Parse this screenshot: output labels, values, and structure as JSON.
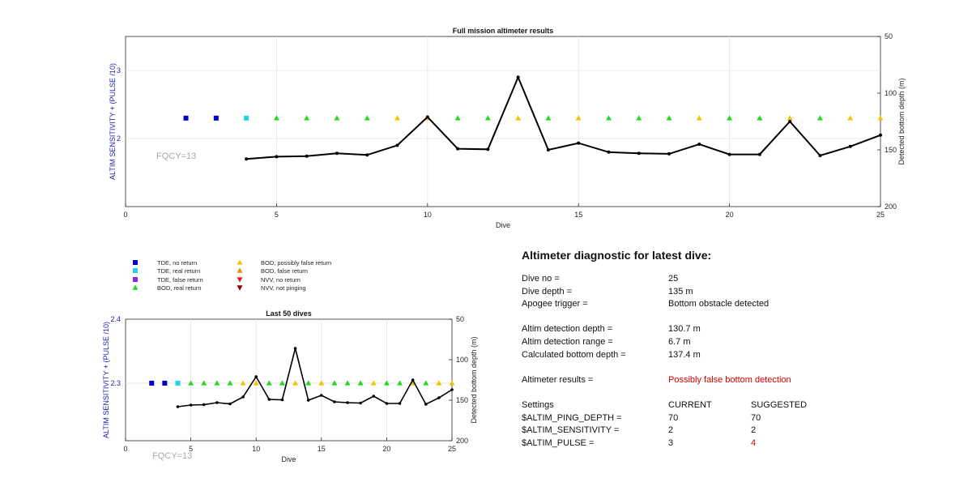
{
  "top_chart": {
    "title": "Full mission altimeter results",
    "xlabel": "Dive",
    "ylabel_left": "ALTIM SENSITIVITY + (PULSE /10)",
    "ylabel_right": "Detected bottom depth (m)",
    "annotation": "FQCY=13",
    "x_ticks": [
      "0",
      "5",
      "10",
      "15",
      "20",
      "25"
    ],
    "y_left_ticks": [
      "2",
      "3"
    ],
    "y_right_ticks": [
      "50",
      "100",
      "150",
      "200"
    ]
  },
  "bottom_chart": {
    "title": "Last 50 dives",
    "xlabel": "Dive",
    "ylabel_left": "ALTIM SENSITIVITY + (PULSE /10)",
    "ylabel_right": "Detected bottom depth (m)",
    "annotation": "FQCY=13",
    "x_ticks": [
      "0",
      "5",
      "10",
      "15",
      "20",
      "25"
    ],
    "y_left_ticks": [
      "2.3",
      "2.4"
    ],
    "y_right_ticks": [
      "50",
      "100",
      "150",
      "200"
    ]
  },
  "legend": [
    {
      "label": "TDE, no return",
      "marker": "square",
      "color": "#0000cc"
    },
    {
      "label": "TDE, real return",
      "marker": "square",
      "color": "#22d3e6"
    },
    {
      "label": "TDE, false return",
      "marker": "square",
      "color": "#8b2be2"
    },
    {
      "label": "BOD, real return",
      "marker": "triangle-up",
      "color": "#1fdc1f"
    },
    {
      "label": "BOD, possibly false return",
      "marker": "triangle-up",
      "color": "#f5c400"
    },
    {
      "label": "BOD, false return",
      "marker": "triangle-up",
      "color": "#f08c00"
    },
    {
      "label": "NVV, no return",
      "marker": "triangle-down",
      "color": "#e02020"
    },
    {
      "label": "NVV, not pinging",
      "marker": "triangle-down",
      "color": "#8b0000"
    }
  ],
  "chart_data": [
    {
      "type": "scatter",
      "title": "Full mission altimeter results",
      "xlabel": "Dive",
      "ylabel": "ALTIM SENSITIVITY + (PULSE /10)",
      "y2label": "Detected bottom depth (m)",
      "xlim": [
        0,
        25
      ],
      "ylim_left": [
        1,
        3.5
      ],
      "ylim_right": [
        200,
        50
      ],
      "series": [
        {
          "name": "TDE, no return",
          "marker": "square",
          "color": "#0000cc",
          "x": [
            2,
            3
          ],
          "y": [
            2.3,
            2.3
          ]
        },
        {
          "name": "TDE, real return",
          "marker": "square",
          "color": "#22d3e6",
          "x": [
            4
          ],
          "y": [
            2.3
          ]
        },
        {
          "name": "BOD, real return",
          "marker": "triangle-up",
          "color": "#1fdc1f",
          "x": [
            5,
            6,
            7,
            8,
            11,
            12,
            14,
            16,
            17,
            18,
            20,
            21,
            23
          ],
          "y": [
            2.3,
            2.3,
            2.3,
            2.3,
            2.3,
            2.3,
            2.3,
            2.3,
            2.3,
            2.3,
            2.3,
            2.3,
            2.3
          ]
        },
        {
          "name": "BOD, possibly false return",
          "marker": "triangle-up",
          "color": "#f5c400",
          "x": [
            9,
            10,
            13,
            15,
            19,
            22,
            24,
            25
          ],
          "y": [
            2.3,
            2.3,
            2.3,
            2.3,
            2.3,
            2.3,
            2.3,
            2.3
          ]
        },
        {
          "name": "Detected bottom depth",
          "axis": "right",
          "type": "line",
          "color": "#000000",
          "x": [
            4,
            5,
            6,
            7,
            8,
            9,
            10,
            11,
            12,
            13,
            14,
            15,
            16,
            17,
            18,
            19,
            20,
            21,
            22,
            23,
            24,
            25
          ],
          "y": [
            158,
            156,
            155.5,
            153,
            154.5,
            146,
            121,
            149,
            149.5,
            86,
            150,
            144,
            152,
            153,
            153.5,
            145,
            154,
            154,
            125,
            155,
            147,
            137
          ]
        }
      ]
    },
    {
      "type": "scatter",
      "title": "Last 50 dives",
      "xlabel": "Dive",
      "ylabel": "ALTIM SENSITIVITY + (PULSE /10)",
      "y2label": "Detected bottom depth (m)",
      "xlim": [
        0,
        25
      ],
      "ylim_left": [
        2.21,
        2.4
      ],
      "ylim_right": [
        200,
        50
      ],
      "series": [
        {
          "name": "TDE, no return",
          "marker": "square",
          "color": "#0000cc",
          "x": [
            2,
            3
          ],
          "y": [
            2.3,
            2.3
          ]
        },
        {
          "name": "TDE, real return",
          "marker": "square",
          "color": "#22d3e6",
          "x": [
            4
          ],
          "y": [
            2.3
          ]
        },
        {
          "name": "BOD, real return",
          "marker": "triangle-up",
          "color": "#1fdc1f",
          "x": [
            5,
            6,
            7,
            8,
            11,
            12,
            14,
            16,
            17,
            18,
            20,
            21,
            23
          ],
          "y": [
            2.3,
            2.3,
            2.3,
            2.3,
            2.3,
            2.3,
            2.3,
            2.3,
            2.3,
            2.3,
            2.3,
            2.3,
            2.3
          ]
        },
        {
          "name": "BOD, possibly false return",
          "marker": "triangle-up",
          "color": "#f5c400",
          "x": [
            9,
            10,
            13,
            15,
            19,
            22,
            24,
            25
          ],
          "y": [
            2.3,
            2.3,
            2.3,
            2.3,
            2.3,
            2.3,
            2.3,
            2.3
          ]
        },
        {
          "name": "Detected bottom depth",
          "axis": "right",
          "type": "line",
          "color": "#000000",
          "x": [
            4,
            5,
            6,
            7,
            8,
            9,
            10,
            11,
            12,
            13,
            14,
            15,
            16,
            17,
            18,
            19,
            20,
            21,
            22,
            23,
            24,
            25
          ],
          "y": [
            158,
            156,
            155.5,
            153,
            154.5,
            146,
            121,
            149,
            149.5,
            86,
            150,
            144,
            152,
            153,
            153.5,
            145,
            154,
            154,
            125,
            155,
            147,
            137
          ]
        }
      ]
    }
  ],
  "diagnostic": {
    "title": "Altimeter diagnostic for latest dive:",
    "dive_no_label": "Dive no =",
    "dive_no_value": "25",
    "dive_depth_label": "Dive depth =",
    "dive_depth_value": "135 m",
    "apogee_label": "Apogee trigger =",
    "apogee_value": "Bottom obstacle detected",
    "detection_depth_label": "Altim detection depth =",
    "detection_depth_value": "130.7 m",
    "detection_range_label": "Altim detection range =",
    "detection_range_value": "6.7 m",
    "bottom_depth_label": "Calculated bottom depth =",
    "bottom_depth_value": "137.4 m",
    "results_label": "Altimeter results =",
    "results_value": "Possibly false bottom detection",
    "settings_header": "Settings",
    "current_header": "CURRENT",
    "suggested_header": "SUGGESTED",
    "settings": [
      {
        "name": "$ALTIM_PING_DEPTH =",
        "current": "70",
        "suggested": "70"
      },
      {
        "name": "$ALTIM_SENSITIVITY =",
        "current": "2",
        "suggested": "2"
      },
      {
        "name": "$ALTIM_PULSE =",
        "current": "3",
        "suggested": "4"
      }
    ],
    "highlight_color": "#d40000"
  }
}
